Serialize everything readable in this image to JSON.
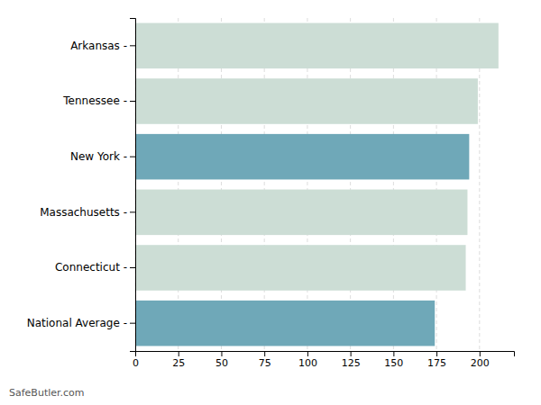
{
  "chart_data": {
    "type": "bar",
    "orientation": "horizontal",
    "categories": [
      "Arkansas -",
      "Tennessee -",
      "New York -",
      "Massachusetts -",
      "Connecticut -",
      "National Average -"
    ],
    "values": [
      211,
      199,
      194,
      193,
      192,
      174
    ],
    "colors": [
      "#ccddd5",
      "#ccddd5",
      "#6fa8b8",
      "#ccddd5",
      "#ccddd5",
      "#6fa8b8"
    ],
    "xlim": [
      0,
      220
    ],
    "xticks": [
      0,
      25,
      50,
      75,
      100,
      125,
      150,
      175,
      200
    ],
    "grid": true,
    "annotations": [
      "SafeButler.com"
    ]
  }
}
